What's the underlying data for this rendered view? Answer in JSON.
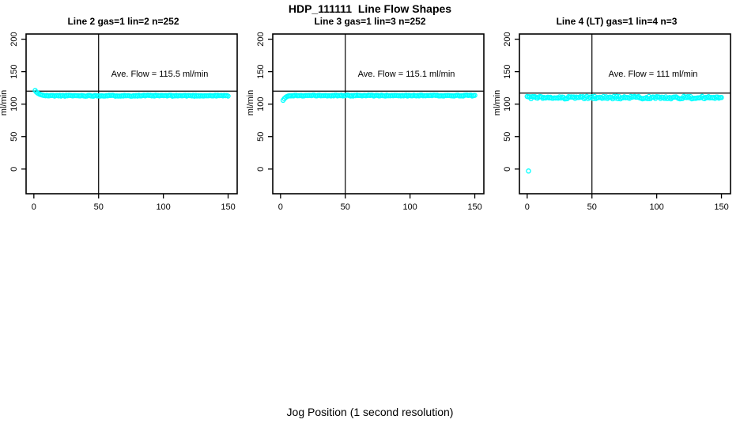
{
  "chart_data": {
    "type": "scatter",
    "title": "HDP_111111  Line Flow Shapes",
    "xlabel": "Jog Position (1 second resolution)",
    "marker_color": "#00FFFF",
    "axis_color": "#000000",
    "background_color": "#FFFFFF",
    "grid": false,
    "panels": [
      {
        "title": "Line 2 gas=1 lin=2 n=252",
        "annotation": "Ave. Flow =  115.5  ml/min",
        "ave_flow_ml_min": 115.5,
        "n": 252,
        "ylabel": "ml/min",
        "xticks": [
          0,
          50,
          100,
          150
        ],
        "yticks": [
          0,
          50,
          100,
          150,
          200
        ],
        "xlim": [
          -6,
          157
        ],
        "ylim": [
          -38,
          208
        ],
        "vline_x": 50,
        "hline_y": 120,
        "series": {
          "ramp_points": [
            [
              1,
              121
            ],
            [
              2,
              118.5
            ],
            [
              3,
              117
            ],
            [
              4,
              115.8
            ],
            [
              5,
              114.8
            ],
            [
              6,
              114.2
            ],
            [
              7,
              113.7
            ]
          ],
          "steady_x_start": 8,
          "steady_x_end": 150,
          "steady_x_step": 1,
          "steady_mean": 113,
          "steady_noise": 0.7,
          "seed": 11
        },
        "outlier_points": []
      },
      {
        "title": "Line 3 gas=1 lin=3 n=252",
        "annotation": "Ave. Flow =  115.1  ml/min",
        "ave_flow_ml_min": 115.1,
        "n": 252,
        "ylabel": "ml/min",
        "xticks": [
          0,
          50,
          100,
          150
        ],
        "yticks": [
          0,
          50,
          100,
          150,
          200
        ],
        "xlim": [
          -6,
          157
        ],
        "ylim": [
          -38,
          208
        ],
        "vline_x": 50,
        "hline_y": 120,
        "series": {
          "ramp_points": [
            [
              2,
              106
            ],
            [
              3,
              108.5
            ],
            [
              4,
              110.5
            ],
            [
              5,
              111.8
            ],
            [
              6,
              112.5
            ]
          ],
          "steady_x_start": 7,
          "steady_x_end": 150,
          "steady_x_step": 1,
          "steady_mean": 113.2,
          "steady_noise": 0.7,
          "seed": 22
        },
        "outlier_points": []
      },
      {
        "title": "Line 4 (LT) gas=1 lin=4 n=3",
        "annotation": "Ave. Flow =  111  ml/min",
        "ave_flow_ml_min": 111,
        "n": 3,
        "ylabel": "ml/min",
        "xticks": [
          0,
          50,
          100,
          150
        ],
        "yticks": [
          0,
          50,
          100,
          150,
          200
        ],
        "xlim": [
          -6,
          157
        ],
        "ylim": [
          -38,
          208
        ],
        "vline_x": 50,
        "hline_y": 117,
        "series": {
          "ramp_points": [],
          "steady_x_start": 0,
          "steady_x_end": 150,
          "steady_x_step": 1,
          "steady_mean": 110,
          "steady_noise": 2,
          "seed": 33
        },
        "outlier_points": [
          [
            1,
            -3
          ]
        ]
      }
    ]
  }
}
